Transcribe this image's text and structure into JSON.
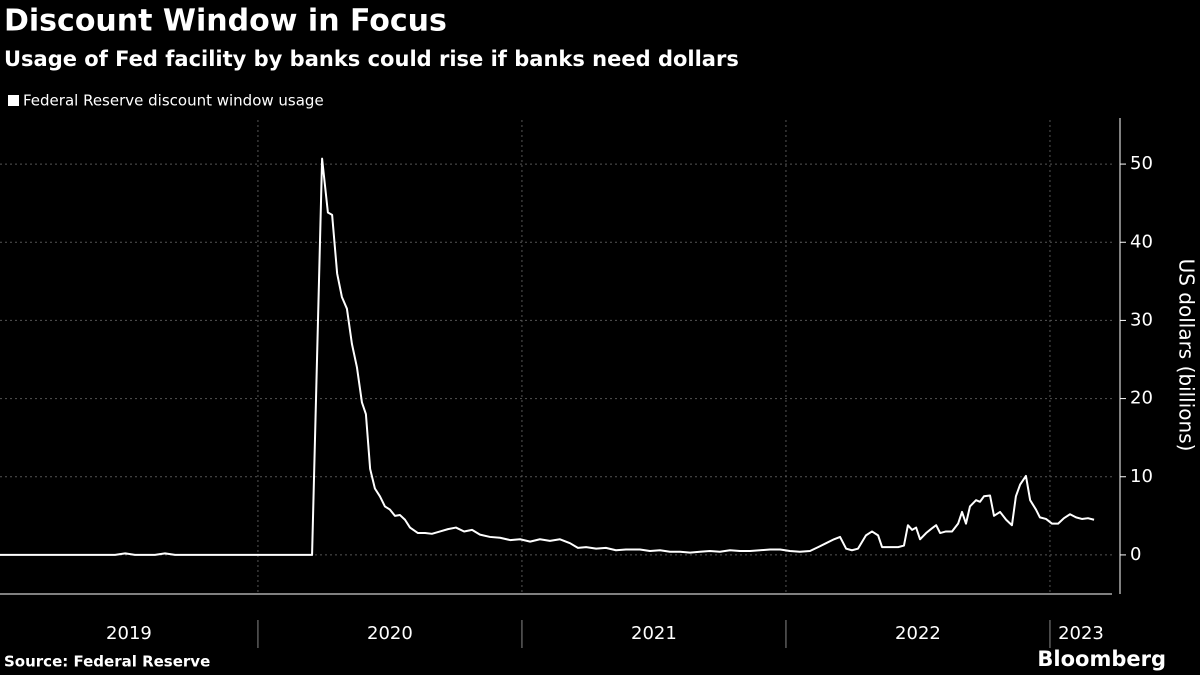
{
  "chart_data": {
    "type": "line",
    "title": "Discount Window in Focus",
    "subtitle": "Usage of Fed facility by banks could rise if banks need dollars",
    "y_label": "US dollars (billions)",
    "source": "Source: Federal Reserve",
    "brand": "Bloomberg",
    "xlim": [
      2019.023,
      2023.235
    ],
    "xticks": [
      2019,
      2020,
      2021,
      2022,
      2023
    ],
    "ylim": [
      -5,
      55
    ],
    "yticks": [
      0,
      10,
      20,
      30,
      40,
      50
    ],
    "grid": true,
    "series": [
      {
        "name": "Federal Reserve discount window usage",
        "color": "#ffffff",
        "x": [
          2019.023,
          2019.459,
          2019.497,
          2019.534,
          2019.61,
          2019.648,
          2019.686,
          2020.205,
          2020.243,
          2020.265,
          2020.281,
          2020.3,
          2020.318,
          2020.337,
          2020.356,
          2020.375,
          2020.394,
          2020.409,
          2020.425,
          2020.443,
          2020.462,
          2020.481,
          2020.5,
          2020.519,
          2020.538,
          2020.557,
          2020.576,
          2020.606,
          2020.633,
          2020.659,
          2020.69,
          2020.72,
          2020.75,
          2020.781,
          2020.811,
          2020.841,
          2020.879,
          2020.917,
          2020.955,
          2020.993,
          2021.031,
          2021.068,
          2021.106,
          2021.144,
          2021.182,
          2021.212,
          2021.243,
          2021.281,
          2021.318,
          2021.356,
          2021.394,
          2021.447,
          2021.485,
          2021.523,
          2021.561,
          2021.599,
          2021.637,
          2021.674,
          2021.712,
          2021.75,
          2021.788,
          2021.826,
          2021.864,
          2021.902,
          2021.94,
          2021.978,
          2022.015,
          2022.053,
          2022.091,
          2022.122,
          2022.152,
          2022.182,
          2022.205,
          2022.228,
          2022.25,
          2022.273,
          2022.303,
          2022.326,
          2022.349,
          2022.364,
          2022.394,
          2022.425,
          2022.447,
          2022.462,
          2022.478,
          2022.493,
          2022.508,
          2022.531,
          2022.553,
          2022.569,
          2022.584,
          2022.606,
          2022.629,
          2022.652,
          2022.667,
          2022.682,
          2022.697,
          2022.72,
          2022.735,
          2022.75,
          2022.773,
          2022.788,
          2022.811,
          2022.834,
          2022.856,
          2022.871,
          2022.887,
          2022.909,
          2022.925,
          2022.947,
          2022.962,
          2022.985,
          2023.008,
          2023.031,
          2023.053,
          2023.076,
          2023.099,
          2023.121,
          2023.144,
          2023.167
        ],
        "values": [
          0,
          0,
          0.2,
          0,
          0,
          0.2,
          0,
          0,
          50.7,
          43.8,
          43.5,
          36,
          33,
          31.5,
          27,
          24,
          19.5,
          18,
          11,
          8.5,
          7.5,
          6.2,
          5.8,
          5,
          5.1,
          4.5,
          3.5,
          2.8,
          2.8,
          2.7,
          3,
          3.3,
          3.5,
          3,
          3.2,
          2.6,
          2.3,
          2.2,
          1.9,
          2,
          1.7,
          2,
          1.8,
          2,
          1.5,
          0.9,
          1,
          0.8,
          0.9,
          0.6,
          0.7,
          0.7,
          0.5,
          0.6,
          0.4,
          0.4,
          0.3,
          0.4,
          0.5,
          0.4,
          0.6,
          0.5,
          0.5,
          0.6,
          0.7,
          0.7,
          0.5,
          0.4,
          0.5,
          1,
          1.5,
          2,
          2.3,
          0.8,
          0.6,
          0.8,
          2.5,
          3,
          2.5,
          1,
          1,
          1,
          1.2,
          3.8,
          3.2,
          3.5,
          2,
          2.8,
          3.4,
          3.8,
          2.8,
          3,
          3,
          4,
          5.5,
          4,
          6.2,
          7,
          6.8,
          7.5,
          7.6,
          5,
          5.5,
          4.5,
          3.8,
          7.5,
          9,
          10.1,
          7,
          5.8,
          4.8,
          4.6,
          4,
          4,
          4.7,
          5.2,
          4.8,
          4.6,
          4.7,
          4.5
        ]
      }
    ]
  }
}
